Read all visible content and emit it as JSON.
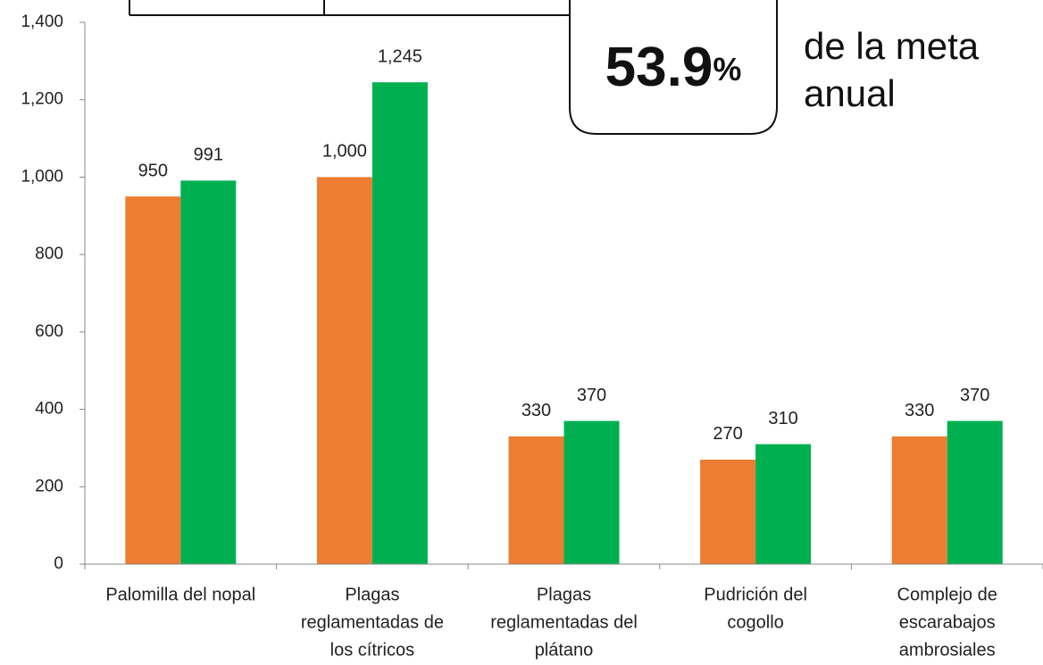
{
  "chart_data": {
    "type": "bar",
    "categories": [
      [
        "Palomilla del nopal"
      ],
      [
        "Plagas",
        "reglamentadas de",
        "los cítricos"
      ],
      [
        "Plagas",
        "reglamentadas del",
        "plátano"
      ],
      [
        "Pudrición del",
        "cogollo"
      ],
      [
        "Complejo de",
        "escarabajos",
        "ambrosiales"
      ]
    ],
    "series": [
      {
        "color": "#ed7d31",
        "values": [
          950,
          1000,
          330,
          270,
          330
        ],
        "value_labels": [
          "950",
          "1,000",
          "330",
          "270",
          "330"
        ]
      },
      {
        "color": "#00b050",
        "values": [
          991,
          1245,
          370,
          310,
          370
        ],
        "value_labels": [
          "991",
          "1,245",
          "370",
          "310",
          "370"
        ]
      }
    ],
    "ylim": [
      0,
      1400
    ],
    "yticks": [
      0,
      200,
      400,
      600,
      800,
      {
        "value": 1000,
        "label": "1,000"
      },
      {
        "value": 1200,
        "label": "1,200"
      },
      {
        "value": 1400,
        "label": "1,400"
      }
    ],
    "grid": false,
    "highlight": {
      "number": "53.9",
      "unit": "%",
      "text": [
        "de la meta",
        "anual"
      ]
    }
  }
}
